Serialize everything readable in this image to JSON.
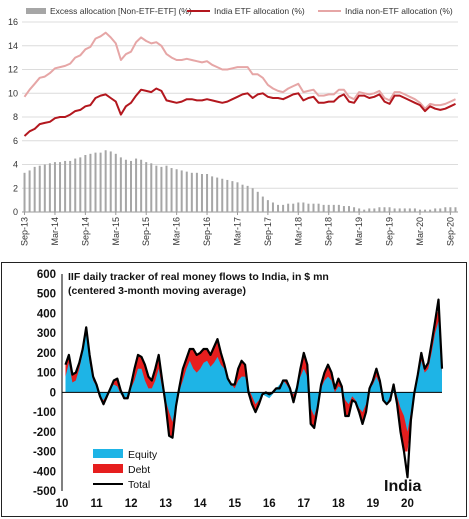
{
  "chart_data": [
    {
      "type": "bar+line",
      "title": "",
      "ylim": [
        0,
        16
      ],
      "yticks": [
        "0",
        "2",
        "4",
        "6",
        "8",
        "10",
        "12",
        "14",
        "16"
      ],
      "xticks": [
        "Sep-13",
        "Mar-14",
        "Sep-14",
        "Mar-15",
        "Sep-15",
        "Mar-16",
        "Sep-16",
        "Mar-17",
        "Sep-17",
        "Mar-18",
        "Sep-18",
        "Mar-19",
        "Sep-19",
        "Mar-20",
        "Sep-20"
      ],
      "grid": true,
      "legend_position": "top",
      "series": [
        {
          "name": "Excess allocation [Non-ETF-ETF] (%)",
          "kind": "bar",
          "color": "#a6a6a6",
          "values": [
            3.3,
            3.5,
            3.8,
            3.9,
            4,
            4.1,
            4.2,
            4.2,
            4.3,
            4.3,
            4.5,
            4.6,
            4.8,
            4.9,
            5.0,
            5.0,
            5.2,
            5.1,
            4.9,
            4.6,
            4.4,
            4.3,
            4.5,
            4.4,
            4.2,
            4.1,
            3.9,
            3.8,
            3.9,
            3.7,
            3.6,
            3.5,
            3.4,
            3.3,
            3.3,
            3.2,
            3.2,
            3.0,
            2.9,
            2.8,
            2.7,
            2.6,
            2.5,
            2.3,
            2.2,
            2.0,
            1.7,
            1.3,
            1.0,
            0.8,
            0.6,
            0.6,
            0.7,
            0.7,
            0.8,
            0.8,
            0.7,
            0.7,
            0.7,
            0.6,
            0.6,
            0.6,
            0.6,
            0.5,
            0.5,
            0.4,
            0.3,
            0.2,
            0.3,
            0.3,
            0.4,
            0.4,
            0.4,
            0.3,
            0.3,
            0.3,
            0.3,
            0.3,
            0.2,
            0.2,
            0.2,
            0.3,
            0.3,
            0.4,
            0.4,
            0.4
          ]
        },
        {
          "name": "India ETF allocation (%)",
          "kind": "line",
          "color": "#b3171e",
          "values": [
            6.4,
            6.8,
            7.0,
            7.4,
            7.5,
            7.6,
            7.9,
            8.0,
            8.0,
            8.2,
            8.5,
            8.6,
            8.9,
            9.0,
            9.6,
            9.8,
            9.9,
            9.6,
            9.3,
            8.2,
            8.9,
            9.2,
            9.8,
            10.3,
            10.2,
            10.1,
            10.4,
            10.2,
            9.4,
            9.3,
            9.2,
            9.3,
            9.5,
            9.5,
            9.4,
            9.4,
            9.5,
            9.4,
            9.3,
            9.2,
            9.3,
            9.5,
            9.7,
            9.9,
            10.0,
            9.6,
            9.9,
            10.0,
            9.7,
            9.6,
            9.6,
            9.5,
            9.7,
            9.9,
            10.0,
            9.4,
            9.6,
            9.7,
            9.2,
            9.2,
            9.3,
            9.3,
            9.7,
            9.9,
            9.3,
            9.2,
            9.8,
            9.8,
            9.6,
            9.7,
            9.9,
            9.3,
            9.1,
            9.8,
            9.8,
            9.6,
            9.4,
            9.2,
            9.0,
            8.5,
            8.9,
            8.7,
            8.6,
            8.7,
            8.9,
            9.1
          ]
        },
        {
          "name": "India non-ETF allocation (%)",
          "kind": "line",
          "color": "#e6a6a6",
          "values": [
            9.7,
            10.3,
            10.8,
            11.3,
            11.4,
            11.7,
            12.1,
            12.2,
            12.3,
            12.5,
            13.0,
            13.2,
            13.7,
            13.9,
            14.6,
            14.8,
            15.1,
            14.7,
            14.2,
            12.8,
            13.3,
            13.5,
            14.3,
            14.7,
            14.4,
            14.2,
            14.3,
            14.0,
            13.3,
            13.0,
            12.8,
            12.8,
            12.9,
            12.8,
            12.7,
            12.6,
            12.7,
            12.4,
            12.2,
            12.0,
            12.0,
            12.1,
            12.2,
            12.2,
            12.2,
            11.6,
            11.6,
            11.3,
            10.7,
            10.4,
            10.2,
            10.1,
            10.4,
            10.6,
            10.8,
            10.1,
            10.2,
            10.3,
            9.8,
            9.8,
            9.9,
            9.9,
            10.3,
            10.3,
            9.7,
            9.5,
            10.1,
            10.0,
            9.9,
            10.0,
            10.2,
            9.6,
            9.4,
            10.1,
            10.1,
            9.9,
            9.7,
            9.5,
            9.2,
            8.7,
            9.1,
            9.0,
            9.0,
            9.1,
            9.3,
            9.5
          ]
        }
      ]
    },
    {
      "type": "area+line",
      "title": "IIF daily tracker of real money flows to India, in $ mn",
      "subtitle": "(centered 3-month moving average)",
      "annotation": "India",
      "ylim": [
        -500,
        600
      ],
      "yticks": [
        "-500",
        "-400",
        "-300",
        "-200",
        "-100",
        "0",
        "100",
        "200",
        "300",
        "400",
        "500",
        "600"
      ],
      "xticks": [
        "10",
        "11",
        "12",
        "13",
        "14",
        "15",
        "16",
        "17",
        "18",
        "19",
        "20"
      ],
      "xlim": [
        2010,
        2021
      ],
      "grid": false,
      "legend_position": "bottom-left",
      "x": [
        2010.1,
        2010.2,
        2010.3,
        2010.4,
        2010.5,
        2010.6,
        2010.7,
        2010.8,
        2010.9,
        2011.0,
        2011.1,
        2011.2,
        2011.3,
        2011.4,
        2011.5,
        2011.6,
        2011.7,
        2011.8,
        2011.9,
        2012.0,
        2012.1,
        2012.2,
        2012.3,
        2012.4,
        2012.5,
        2012.6,
        2012.7,
        2012.8,
        2012.9,
        2013.0,
        2013.1,
        2013.2,
        2013.3,
        2013.4,
        2013.5,
        2013.6,
        2013.7,
        2013.8,
        2013.9,
        2014.0,
        2014.1,
        2014.2,
        2014.3,
        2014.4,
        2014.5,
        2014.6,
        2014.7,
        2014.8,
        2014.9,
        2015.0,
        2015.1,
        2015.2,
        2015.3,
        2015.4,
        2015.5,
        2015.6,
        2015.7,
        2015.8,
        2015.9,
        2016.0,
        2016.1,
        2016.2,
        2016.3,
        2016.4,
        2016.5,
        2016.6,
        2016.7,
        2016.8,
        2016.9,
        2017.0,
        2017.1,
        2017.2,
        2017.3,
        2017.4,
        2017.5,
        2017.6,
        2017.7,
        2017.8,
        2017.9,
        2018.0,
        2018.1,
        2018.2,
        2018.3,
        2018.4,
        2018.5,
        2018.6,
        2018.7,
        2018.8,
        2018.9,
        2019.0,
        2019.1,
        2019.2,
        2019.3,
        2019.4,
        2019.5,
        2019.6,
        2019.7,
        2019.8,
        2019.9,
        2020.0,
        2020.1,
        2020.2,
        2020.3,
        2020.4,
        2020.5,
        2020.6,
        2020.7,
        2020.8,
        2020.9,
        2021.0
      ],
      "series": [
        {
          "name": "Equity",
          "kind": "area",
          "color": "#1eb4e6",
          "values": [
            80,
            150,
            50,
            60,
            120,
            200,
            300,
            150,
            60,
            30,
            -20,
            -40,
            -10,
            20,
            40,
            30,
            -10,
            -30,
            -20,
            20,
            60,
            120,
            120,
            60,
            20,
            20,
            60,
            120,
            20,
            -40,
            -100,
            -150,
            -60,
            10,
            60,
            120,
            160,
            120,
            100,
            120,
            150,
            160,
            130,
            150,
            180,
            140,
            120,
            60,
            40,
            20,
            60,
            80,
            80,
            20,
            -20,
            -60,
            -40,
            -10,
            -20,
            -30,
            -10,
            20,
            40,
            60,
            40,
            10,
            -10,
            40,
            80,
            120,
            80,
            -80,
            -120,
            -60,
            20,
            60,
            80,
            60,
            0,
            30,
            20,
            -40,
            -60,
            -20,
            -40,
            -80,
            -100,
            -60,
            20,
            40,
            80,
            40,
            -40,
            -60,
            -20,
            40,
            -20,
            -80,
            -120,
            -200,
            -100,
            20,
            80,
            160,
            100,
            120,
            200,
            300,
            360,
            100
          ]
        },
        {
          "name": "Debt",
          "kind": "area",
          "color": "#e61e1e",
          "values": [
            60,
            40,
            40,
            40,
            30,
            20,
            30,
            40,
            20,
            10,
            0,
            -20,
            -10,
            0,
            20,
            40,
            20,
            0,
            -10,
            20,
            60,
            70,
            60,
            80,
            60,
            40,
            60,
            70,
            40,
            -20,
            -120,
            -80,
            -10,
            20,
            60,
            50,
            60,
            100,
            90,
            80,
            70,
            60,
            60,
            80,
            90,
            60,
            20,
            10,
            0,
            20,
            60,
            80,
            60,
            -20,
            -40,
            -40,
            -20,
            0,
            20,
            20,
            10,
            0,
            -20,
            0,
            20,
            10,
            -40,
            -20,
            40,
            80,
            60,
            -80,
            -60,
            -20,
            20,
            40,
            60,
            40,
            20,
            40,
            10,
            -80,
            -60,
            -20,
            -10,
            -20,
            -60,
            -40,
            0,
            20,
            40,
            20,
            0,
            0,
            -20,
            0,
            -40,
            -120,
            -180,
            -100,
            -40,
            -20,
            10,
            40,
            20,
            30,
            50,
            60,
            60,
            20
          ]
        },
        {
          "name": "Total",
          "kind": "line",
          "color": "#000000",
          "values": [
            140,
            190,
            90,
            100,
            150,
            220,
            330,
            190,
            80,
            40,
            -20,
            -60,
            -20,
            20,
            60,
            70,
            10,
            -30,
            -30,
            40,
            120,
            190,
            180,
            140,
            80,
            60,
            120,
            190,
            60,
            -60,
            -220,
            -230,
            -70,
            30,
            120,
            170,
            220,
            220,
            190,
            200,
            220,
            220,
            190,
            230,
            270,
            200,
            140,
            70,
            40,
            40,
            120,
            160,
            140,
            0,
            -60,
            -100,
            -60,
            -10,
            0,
            -10,
            0,
            20,
            20,
            60,
            60,
            20,
            -50,
            20,
            120,
            200,
            140,
            -160,
            -180,
            -80,
            40,
            100,
            140,
            100,
            20,
            70,
            30,
            -120,
            -120,
            -40,
            -50,
            -100,
            -160,
            -100,
            20,
            60,
            120,
            60,
            -40,
            -60,
            -40,
            40,
            -60,
            -200,
            -300,
            -430,
            -140,
            0,
            90,
            200,
            120,
            150,
            250,
            360,
            470,
            120
          ]
        }
      ]
    }
  ]
}
